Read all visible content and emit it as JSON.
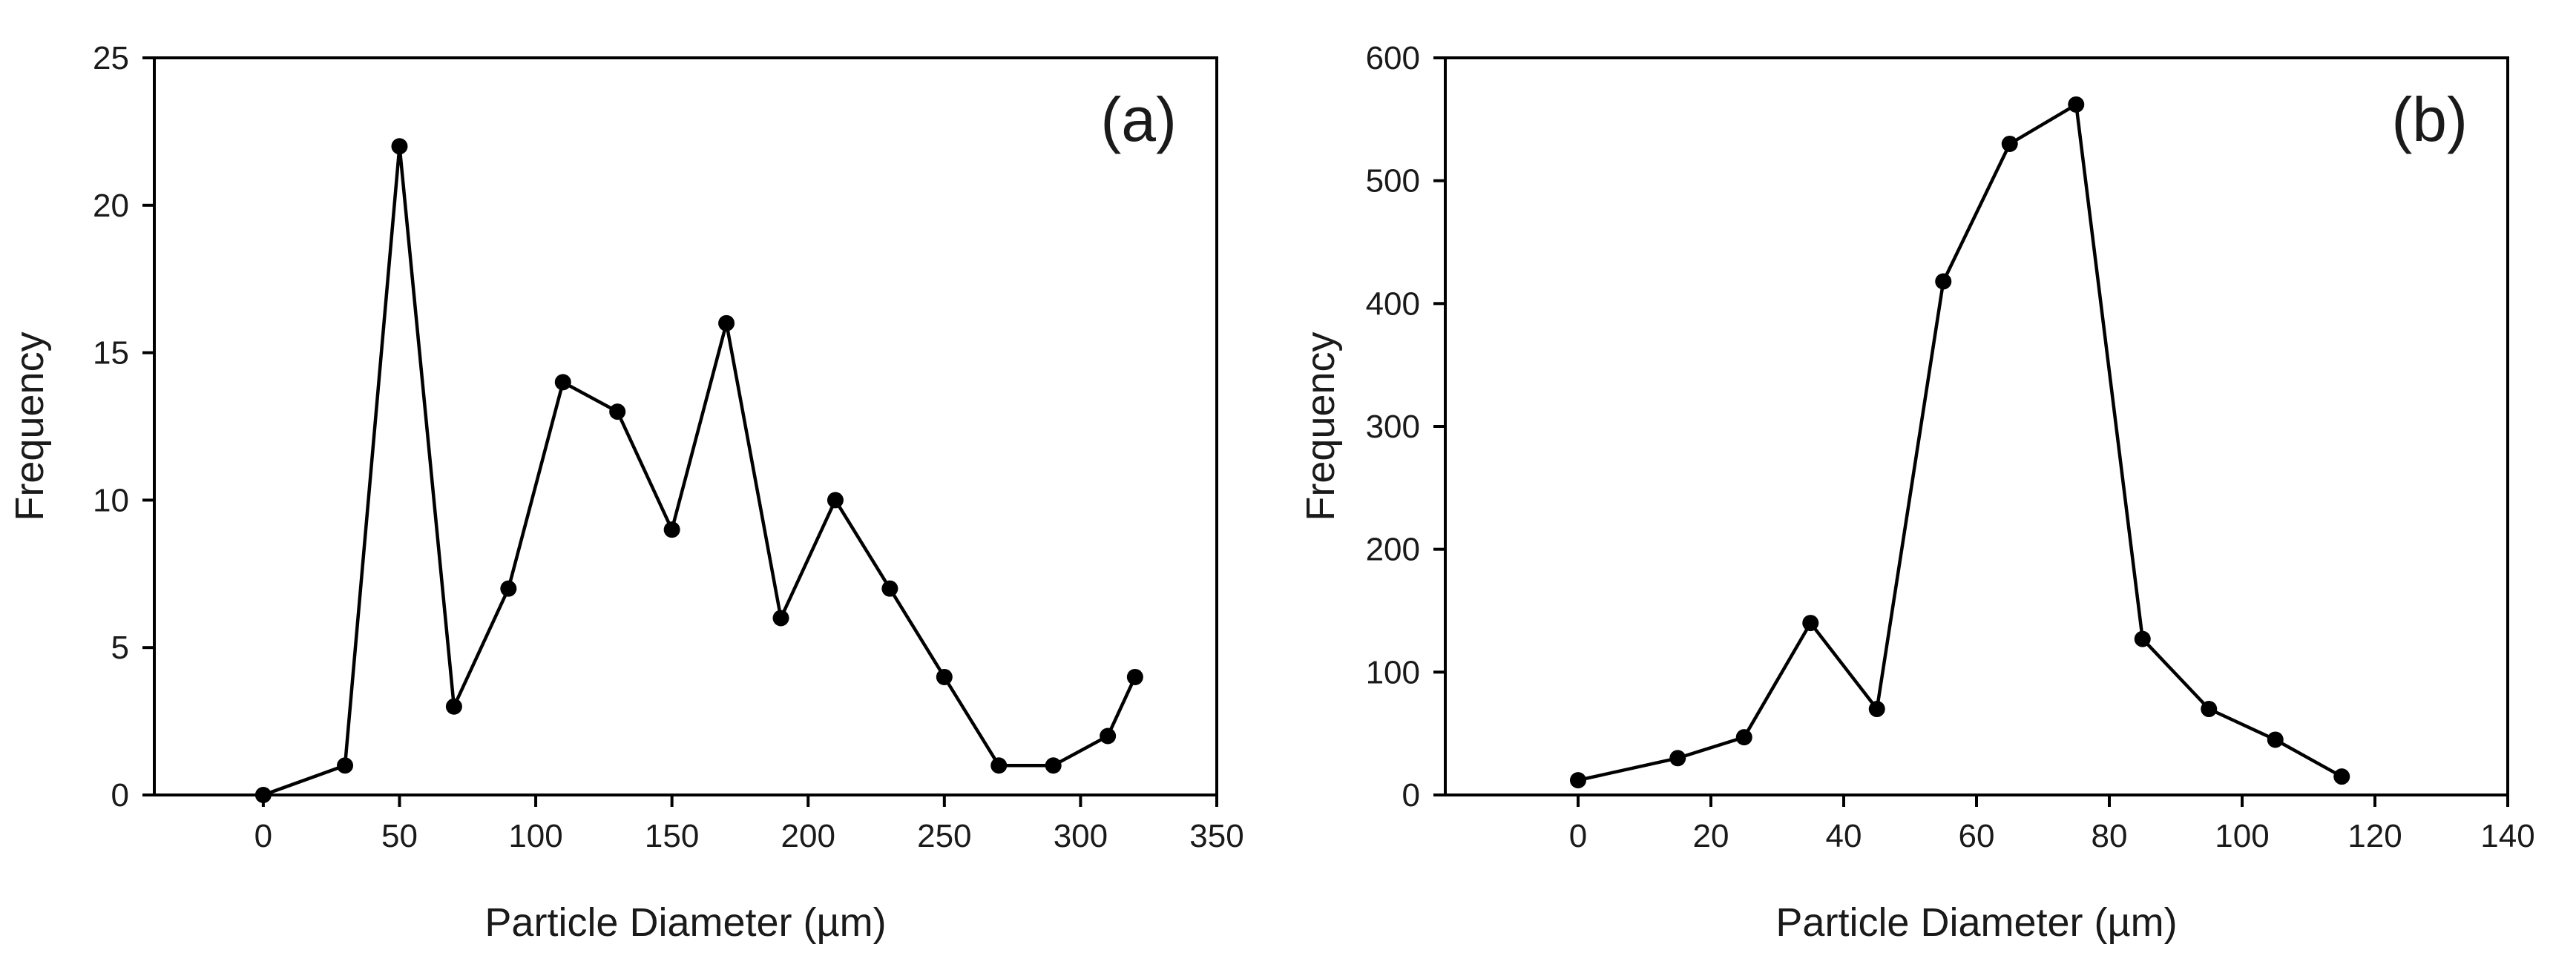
{
  "chart_data": [
    {
      "type": "line",
      "panel_label": "(a)",
      "xlabel": "Particle Diameter (µm)",
      "ylabel": "Frequency",
      "xlim": [
        -40,
        350
      ],
      "ylim": [
        0,
        25
      ],
      "xticks": [
        0,
        50,
        100,
        150,
        200,
        250,
        300,
        350
      ],
      "yticks": [
        0,
        5,
        10,
        15,
        20,
        25
      ],
      "grid": false,
      "series": [
        {
          "name": "(a)",
          "x": [
            0,
            30,
            50,
            70,
            90,
            110,
            130,
            150,
            170,
            190,
            210,
            230,
            250,
            270,
            290,
            310,
            320
          ],
          "y": [
            0,
            1,
            22,
            3,
            7,
            14,
            13,
            9,
            16,
            6,
            10,
            7,
            4,
            1,
            1,
            2,
            4
          ]
        }
      ]
    },
    {
      "type": "line",
      "panel_label": "(b)",
      "xlabel": "Particle Diameter (µm)",
      "ylabel": "Frequency",
      "xlim": [
        -20,
        140
      ],
      "ylim": [
        0,
        600
      ],
      "xticks": [
        0,
        20,
        40,
        60,
        80,
        100,
        120,
        140
      ],
      "yticks": [
        0,
        100,
        200,
        300,
        400,
        500,
        600
      ],
      "grid": false,
      "series": [
        {
          "name": "(b)",
          "x": [
            0,
            15,
            25,
            35,
            45,
            55,
            65,
            75,
            85,
            95,
            105,
            115
          ],
          "y": [
            12,
            30,
            47,
            140,
            70,
            418,
            530,
            562,
            127,
            70,
            45,
            15
          ]
        }
      ]
    }
  ]
}
